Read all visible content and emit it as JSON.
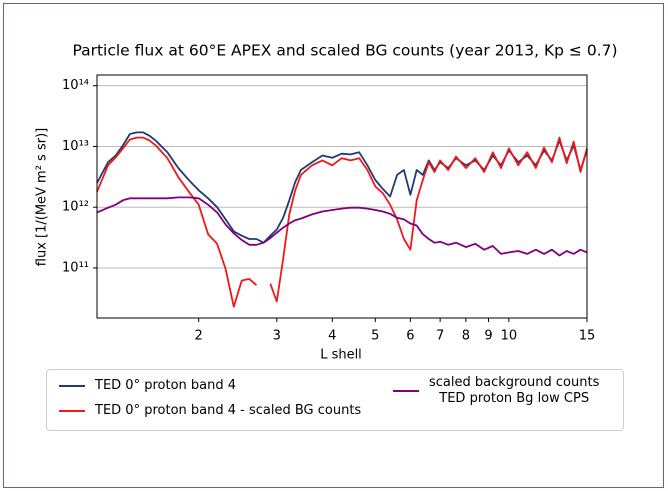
{
  "chart_data": {
    "type": "line",
    "title": "Particle flux at 60°E APEX and scaled BG counts (year 2013, Kp ≤ 0.7)",
    "xlabel": "L shell",
    "ylabel": "flux [1/(MeV m² s sr)]",
    "xscale": "log",
    "yscale": "log",
    "grid": "y",
    "legend": "below",
    "xlim": [
      1.18,
      15
    ],
    "ylim": [
      15000000000.0,
      150000000000000.0
    ],
    "xticks": [
      2,
      3,
      4,
      5,
      6,
      7,
      8,
      9,
      10,
      15
    ],
    "yticks": [
      {
        "value": 100000000000.0,
        "label": "10¹¹"
      },
      {
        "value": 1000000000000.0,
        "label": "10¹²"
      },
      {
        "value": 10000000000000.0,
        "label": "10¹³"
      },
      {
        "value": 100000000000000.0,
        "label": "10¹⁴"
      }
    ],
    "x": [
      1.18,
      1.25,
      1.3,
      1.35,
      1.4,
      1.45,
      1.5,
      1.55,
      1.6,
      1.7,
      1.8,
      1.9,
      2.0,
      2.1,
      2.2,
      2.3,
      2.4,
      2.5,
      2.6,
      2.7,
      2.8,
      2.9,
      3.0,
      3.1,
      3.2,
      3.3,
      3.4,
      3.6,
      3.8,
      4.0,
      4.2,
      4.4,
      4.6,
      4.8,
      5.0,
      5.2,
      5.4,
      5.6,
      5.8,
      6.0,
      6.2,
      6.4,
      6.6,
      6.8,
      7.0,
      7.3,
      7.6,
      8.0,
      8.4,
      8.8,
      9.2,
      9.6,
      10,
      10.5,
      11,
      11.5,
      12,
      12.5,
      13,
      13.5,
      14,
      14.5,
      15
    ],
    "series": [
      {
        "name": "TED 0° proton band 4",
        "color": "#1f3b73",
        "values": [
          2500000000000.0,
          5500000000000.0,
          7100000000000.0,
          10400000000000.0,
          16000000000000.0,
          17000000000000.0,
          17000000000000.0,
          15000000000000.0,
          12500000000000.0,
          8000000000000.0,
          4400000000000.0,
          2800000000000.0,
          1900000000000.0,
          1400000000000.0,
          1000000000000.0,
          630000000000.0,
          400000000000.0,
          340000000000.0,
          300000000000.0,
          300000000000.0,
          260000000000.0,
          340000000000.0,
          430000000000.0,
          670000000000.0,
          1300000000000.0,
          2600000000000.0,
          4100000000000.0,
          5500000000000.0,
          7100000000000.0,
          6500000000000.0,
          7600000000000.0,
          7400000000000.0,
          8000000000000.0,
          4900000000000.0,
          2800000000000.0,
          2000000000000.0,
          1500000000000.0,
          3400000000000.0,
          4100000000000.0,
          1600000000000.0,
          4100000000000.0,
          3400000000000.0,
          5900000000000.0,
          4100000000000.0,
          5500000000000.0,
          4400000000000.0,
          6400000000000.0,
          4900000000000.0,
          5900000000000.0,
          4100000000000.0,
          7100000000000.0,
          4900000000000.0,
          8600000000000.0,
          5500000000000.0,
          7100000000000.0,
          4900000000000.0,
          8600000000000.0,
          5900000000000.0,
          12500000000000.0,
          5900000000000.0,
          10400000000000.0,
          4100000000000.0,
          8600000000000.0
        ]
      },
      {
        "name": "TED 0° proton band 4 - scaled BG counts",
        "color": "#f01818",
        "values": [
          1800000000000.0,
          4900000000000.0,
          6600000000000.0,
          9300000000000.0,
          13000000000000.0,
          14000000000000.0,
          14000000000000.0,
          12500000000000.0,
          10400000000000.0,
          6400000000000.0,
          3100000000000.0,
          1800000000000.0,
          1100000000000.0,
          360000000000.0,
          250000000000.0,
          96000000000.0,
          23000000000.0,
          62000000000.0,
          66000000000.0,
          52000000000.0,
          null,
          55000000000.0,
          28000000000.0,
          140000000000.0,
          760000000000.0,
          1900000000000.0,
          3400000000000.0,
          4900000000000.0,
          5900000000000.0,
          4900000000000.0,
          6400000000000.0,
          5900000000000.0,
          6400000000000.0,
          4100000000000.0,
          2200000000000.0,
          1700000000000.0,
          1100000000000.0,
          630000000000.0,
          300000000000.0,
          200000000000.0,
          1300000000000.0,
          2800000000000.0,
          5500000000000.0,
          3800000000000.0,
          5900000000000.0,
          4100000000000.0,
          6800000000000.0,
          4400000000000.0,
          6400000000000.0,
          3800000000000.0,
          8000000000000.0,
          4400000000000.0,
          9300000000000.0,
          4900000000000.0,
          8000000000000.0,
          4400000000000.0,
          9600000000000.0,
          5500000000000.0,
          14000000000000.0,
          5300000000000.0,
          12000000000000.0,
          3800000000000.0,
          9300000000000.0
        ]
      },
      {
        "name": "scaled background counts\nTED proton Bg low CPS",
        "color": "#800080",
        "values": [
          820000000000.0,
          980000000000.0,
          1100000000000.0,
          1300000000000.0,
          1400000000000.0,
          1400000000000.0,
          1400000000000.0,
          1400000000000.0,
          1400000000000.0,
          1400000000000.0,
          1450000000000.0,
          1450000000000.0,
          1400000000000.0,
          1100000000000.0,
          820000000000.0,
          520000000000.0,
          370000000000.0,
          290000000000.0,
          240000000000.0,
          240000000000.0,
          260000000000.0,
          310000000000.0,
          380000000000.0,
          460000000000.0,
          540000000000.0,
          610000000000.0,
          650000000000.0,
          760000000000.0,
          850000000000.0,
          900000000000.0,
          950000000000.0,
          980000000000.0,
          980000000000.0,
          950000000000.0,
          900000000000.0,
          850000000000.0,
          780000000000.0,
          670000000000.0,
          630000000000.0,
          540000000000.0,
          500000000000.0,
          360000000000.0,
          300000000000.0,
          260000000000.0,
          270000000000.0,
          240000000000.0,
          260000000000.0,
          220000000000.0,
          250000000000.0,
          200000000000.0,
          230000000000.0,
          170000000000.0,
          180000000000.0,
          190000000000.0,
          170000000000.0,
          200000000000.0,
          170000000000.0,
          200000000000.0,
          160000000000.0,
          190000000000.0,
          170000000000.0,
          200000000000.0,
          180000000000.0
        ]
      }
    ]
  }
}
